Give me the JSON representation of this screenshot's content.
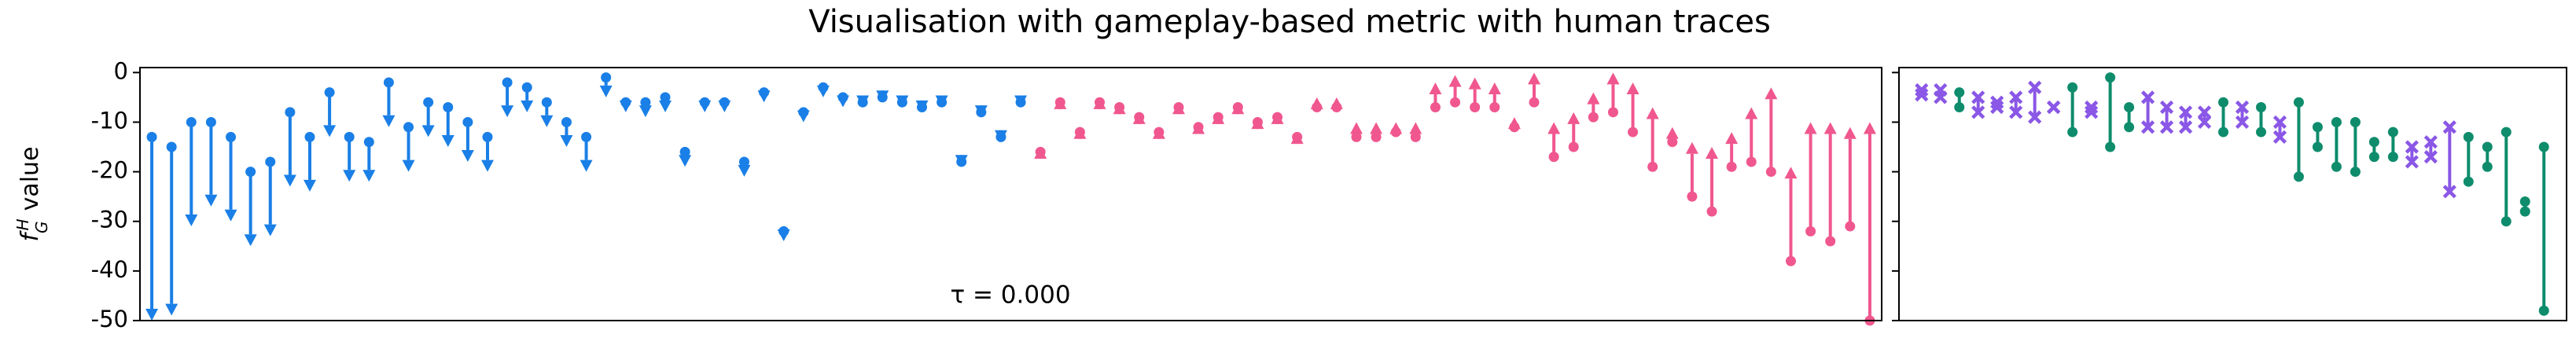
{
  "chart_data": [
    {
      "type": "arrow",
      "title": "Visualisation with gameplay-based metric with human traces",
      "ylabel": {
        "symbol": "f",
        "sub": "G",
        "sup": "H",
        "text": "value"
      },
      "annotation": "τ = 0.000",
      "ylim": [
        -50,
        1
      ],
      "yticks": [
        0,
        -10,
        -20,
        -30,
        -40,
        -50
      ],
      "down_color": "#1a7fe6",
      "up_color": "#f0578e",
      "start": [
        -13,
        -15,
        -10,
        -10,
        -13,
        -20,
        -18,
        -8,
        -13,
        -4,
        -13,
        -14,
        -2,
        -11,
        -6,
        -7,
        -10,
        -13,
        -2,
        -3,
        -6,
        -10,
        -13,
        -1,
        -6,
        -6,
        -5,
        -16,
        -6,
        -6,
        -18,
        -4,
        -32,
        -8,
        -3,
        -5,
        -6,
        -5,
        -6,
        -7,
        -6,
        -18,
        -8,
        -13,
        -6,
        -16,
        -6,
        -12,
        -6,
        -7,
        -9,
        -12,
        -7,
        -11,
        -9,
        -7,
        -10,
        -9,
        -13,
        -7,
        -7,
        -13,
        -13,
        -12,
        -13,
        -7,
        -6,
        -7,
        -7,
        -11,
        -6,
        -17,
        -15,
        -9,
        -8,
        -12,
        -19,
        -14,
        -25,
        -28,
        -19,
        -18,
        -20,
        -38,
        -32,
        -34,
        -31,
        -50
      ],
      "end": [
        -50,
        -49,
        -31,
        -27,
        -30,
        -35,
        -33,
        -23,
        -24,
        -13,
        -22,
        -22,
        -11,
        -20,
        -13,
        -15,
        -18,
        -20,
        -9,
        -8,
        -11,
        -15,
        -20,
        -5,
        -8,
        -9,
        -8,
        -19,
        -8,
        -8,
        -21,
        -6,
        -34,
        -10,
        -5,
        -7,
        -7,
        -6,
        -7,
        -8,
        -7,
        -19,
        -9,
        -14,
        -7,
        -15,
        -5,
        -11,
        -5,
        -6,
        -8,
        -11,
        -6,
        -10,
        -8,
        -6,
        -9,
        -8,
        -12,
        -5,
        -5,
        -10,
        -10,
        -10,
        -10,
        -2,
        -0.5,
        -1,
        -2,
        -9,
        0,
        -10,
        -8,
        -4,
        0,
        -2,
        -7,
        -11,
        -14,
        -15,
        -12,
        -7,
        -3,
        -19,
        -10,
        -10,
        -11,
        -10
      ]
    },
    {
      "type": "dumbbell",
      "ylim": [
        -50,
        1
      ],
      "yticks": [
        0,
        -10,
        -20,
        -30,
        -40,
        -50
      ],
      "colors": {
        "o": "#0e8c6c",
        "x": "#8a57e6"
      },
      "start": [
        -3.5,
        -3.5,
        -4,
        -5,
        -6,
        -5,
        -3,
        -7,
        -3,
        -7,
        -1,
        -7,
        -5,
        -7,
        -8,
        -8,
        -6,
        -7,
        -7,
        -10,
        -6,
        -11,
        -10,
        -10,
        -14,
        -12,
        -15,
        -14,
        -11,
        -13,
        -15,
        -12,
        -26,
        -15
      ],
      "end": [
        -4.5,
        -5,
        -7,
        -8,
        -7,
        -8,
        -9,
        -7,
        -12,
        -8,
        -15,
        -11,
        -11,
        -11,
        -11,
        -10,
        -12,
        -10,
        -12,
        -13,
        -21,
        -15,
        -19,
        -20,
        -17,
        -17,
        -18,
        -17,
        -24,
        -22,
        -19,
        -30,
        -28,
        -48
      ],
      "marker": [
        "x",
        "x",
        "o",
        "x",
        "x",
        "x",
        "x",
        "x",
        "o",
        "x",
        "o",
        "o",
        "x",
        "x",
        "x",
        "x",
        "o",
        "x",
        "o",
        "x",
        "o",
        "o",
        "o",
        "o",
        "o",
        "o",
        "x",
        "x",
        "x",
        "o",
        "o",
        "o",
        "o",
        "o"
      ]
    }
  ]
}
